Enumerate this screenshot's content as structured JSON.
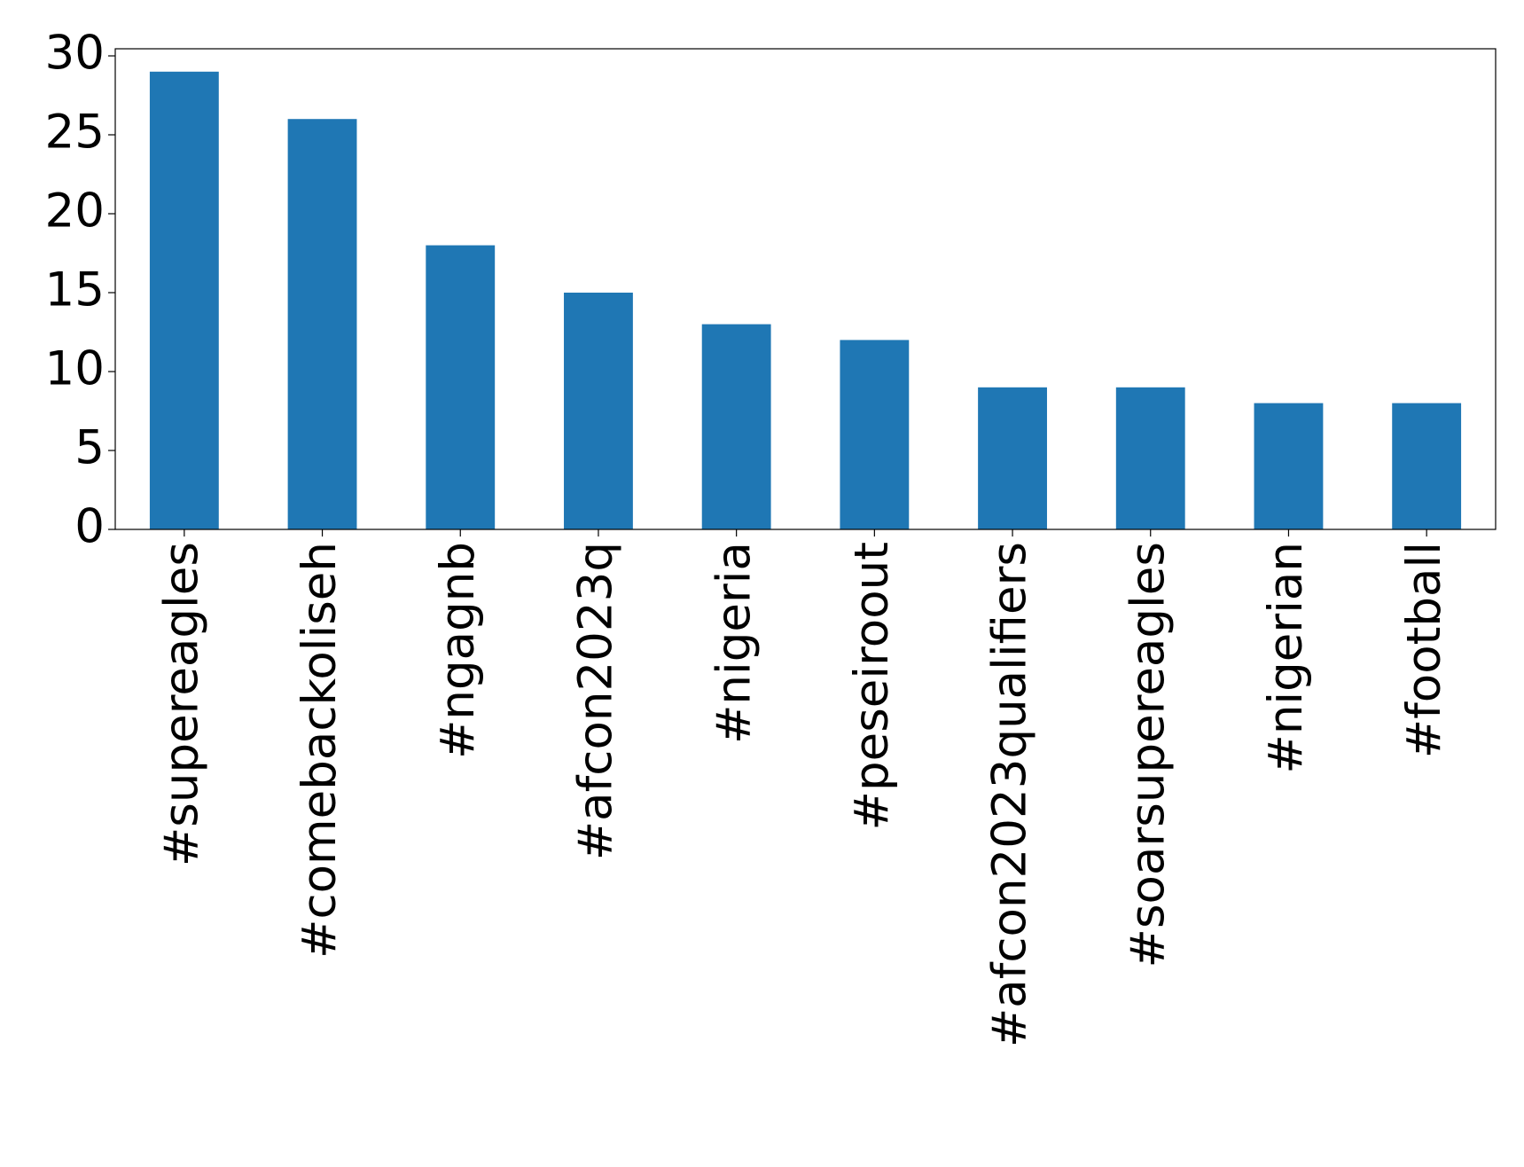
{
  "chart_data": {
    "type": "bar",
    "categories": [
      "#supereagles",
      "#comebackoliseh",
      "#ngagnb",
      "#afcon2023q",
      "#nigeria",
      "#peseiroout",
      "#afcon2023qualifiers",
      "#soarsupereagles",
      "#nigerian",
      "#football"
    ],
    "values": [
      29,
      26,
      18,
      15,
      13,
      12,
      9,
      9,
      8,
      8
    ],
    "color": "#1f77b4",
    "ylim": [
      0,
      30.45
    ],
    "yticks": [
      0,
      5,
      10,
      15,
      20,
      25,
      30
    ],
    "grid": false
  }
}
